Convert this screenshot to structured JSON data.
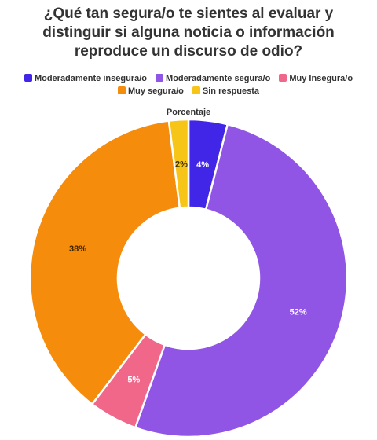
{
  "chart_data": {
    "type": "pie",
    "variant": "donut",
    "title": "¿Qué tan segura/o te sientes al evaluar y distinguir si alguna noticia o información reproduce un discurso de odio?",
    "series_title": "Porcentaje",
    "legend_position": "top",
    "slices": [
      {
        "label": "Moderadamente insegura/o",
        "value": 4,
        "display": "4%",
        "color": "#4226E8",
        "label_color": "#ffffff"
      },
      {
        "label": "Moderadamente segura/o",
        "value": 52,
        "display": "52%",
        "color": "#9155E6",
        "label_color": "#ffffff"
      },
      {
        "label": "Muy Insegura/o",
        "value": 5,
        "display": "5%",
        "color": "#F0678A",
        "label_color": "#ffffff"
      },
      {
        "label": "Muy segura/o",
        "value": 38,
        "display": "38%",
        "color": "#F58C0C",
        "label_color": "#3a2400"
      },
      {
        "label": "Sin respuesta",
        "value": 2,
        "display": "2%",
        "color": "#F7C518",
        "label_color": "#3a2d00"
      }
    ]
  }
}
